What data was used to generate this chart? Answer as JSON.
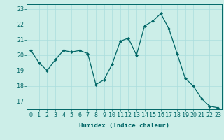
{
  "x": [
    0,
    1,
    2,
    3,
    4,
    5,
    6,
    7,
    8,
    9,
    10,
    11,
    12,
    13,
    14,
    15,
    16,
    17,
    18,
    19,
    20,
    21,
    22,
    23
  ],
  "y": [
    20.3,
    19.5,
    19.0,
    19.7,
    20.3,
    20.2,
    20.3,
    20.1,
    18.1,
    18.4,
    19.4,
    20.9,
    21.1,
    20.0,
    21.9,
    22.2,
    22.7,
    21.7,
    20.1,
    18.5,
    18.0,
    17.2,
    16.7,
    16.6
  ],
  "line_color": "#006666",
  "marker": "D",
  "markersize": 2.0,
  "linewidth": 0.9,
  "bg_color": "#cceee8",
  "grid_color": "#aadddd",
  "xlabel": "Humidex (Indice chaleur)",
  "xlabel_fontsize": 6.5,
  "tick_fontsize": 6.0,
  "ylim": [
    16.5,
    23.3
  ],
  "xlim": [
    -0.5,
    23.5
  ],
  "yticks": [
    17,
    18,
    19,
    20,
    21,
    22,
    23
  ],
  "xticks": [
    0,
    1,
    2,
    3,
    4,
    5,
    6,
    7,
    8,
    9,
    10,
    11,
    12,
    13,
    14,
    15,
    16,
    17,
    18,
    19,
    20,
    21,
    22,
    23
  ]
}
